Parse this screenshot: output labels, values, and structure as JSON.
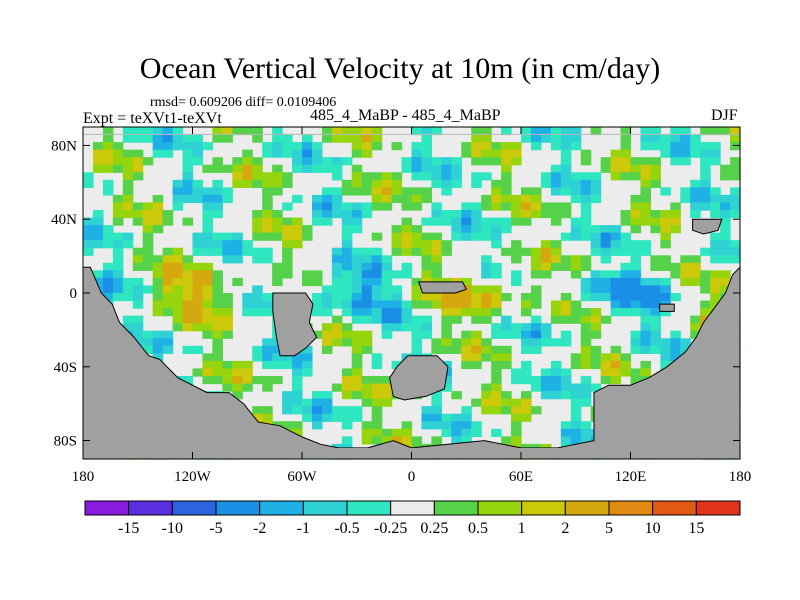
{
  "chart_data": {
    "type": "heatmap",
    "title": "Ocean Vertical Velocity at 10m (in cm/day)",
    "stats_text": "rmsd= 0.609206 diff= 0.0109406",
    "left_label": "Expt = teXVt1-teXVt",
    "center_label": "485_4_MaBP - 485_4_MaBP",
    "right_label": "DJF",
    "x_axis": {
      "range": [
        -180,
        180
      ],
      "ticks": [
        -180,
        -120,
        -60,
        0,
        60,
        120,
        180
      ],
      "tick_labels": [
        "180",
        "120W",
        "60W",
        "0",
        "60E",
        "120E",
        "180"
      ]
    },
    "y_axis": {
      "range": [
        -90,
        90
      ],
      "ticks": [
        80,
        40,
        0,
        -40,
        -80
      ],
      "tick_labels": [
        "80N",
        "40N",
        "0",
        "40S",
        "80S"
      ]
    },
    "colorbar": {
      "labels": [
        "-15",
        "-10",
        "-5",
        "-2",
        "-1",
        "-0.5",
        "-0.25",
        "0.25",
        "0.5",
        "1",
        "2",
        "5",
        "10",
        "15"
      ],
      "colors": [
        "#8a1be0",
        "#5a2fe0",
        "#2f63e0",
        "#1b8ee6",
        "#1fb1e6",
        "#2fd2d2",
        "#2ee6c0",
        "#ececec",
        "#56d24a",
        "#96d40d",
        "#ccc80a",
        "#d4a80e",
        "#e08a14",
        "#e35a15",
        "#e0331b"
      ]
    },
    "land_color": "#a0a0a0",
    "missing_value_region_color": "#ececec"
  }
}
